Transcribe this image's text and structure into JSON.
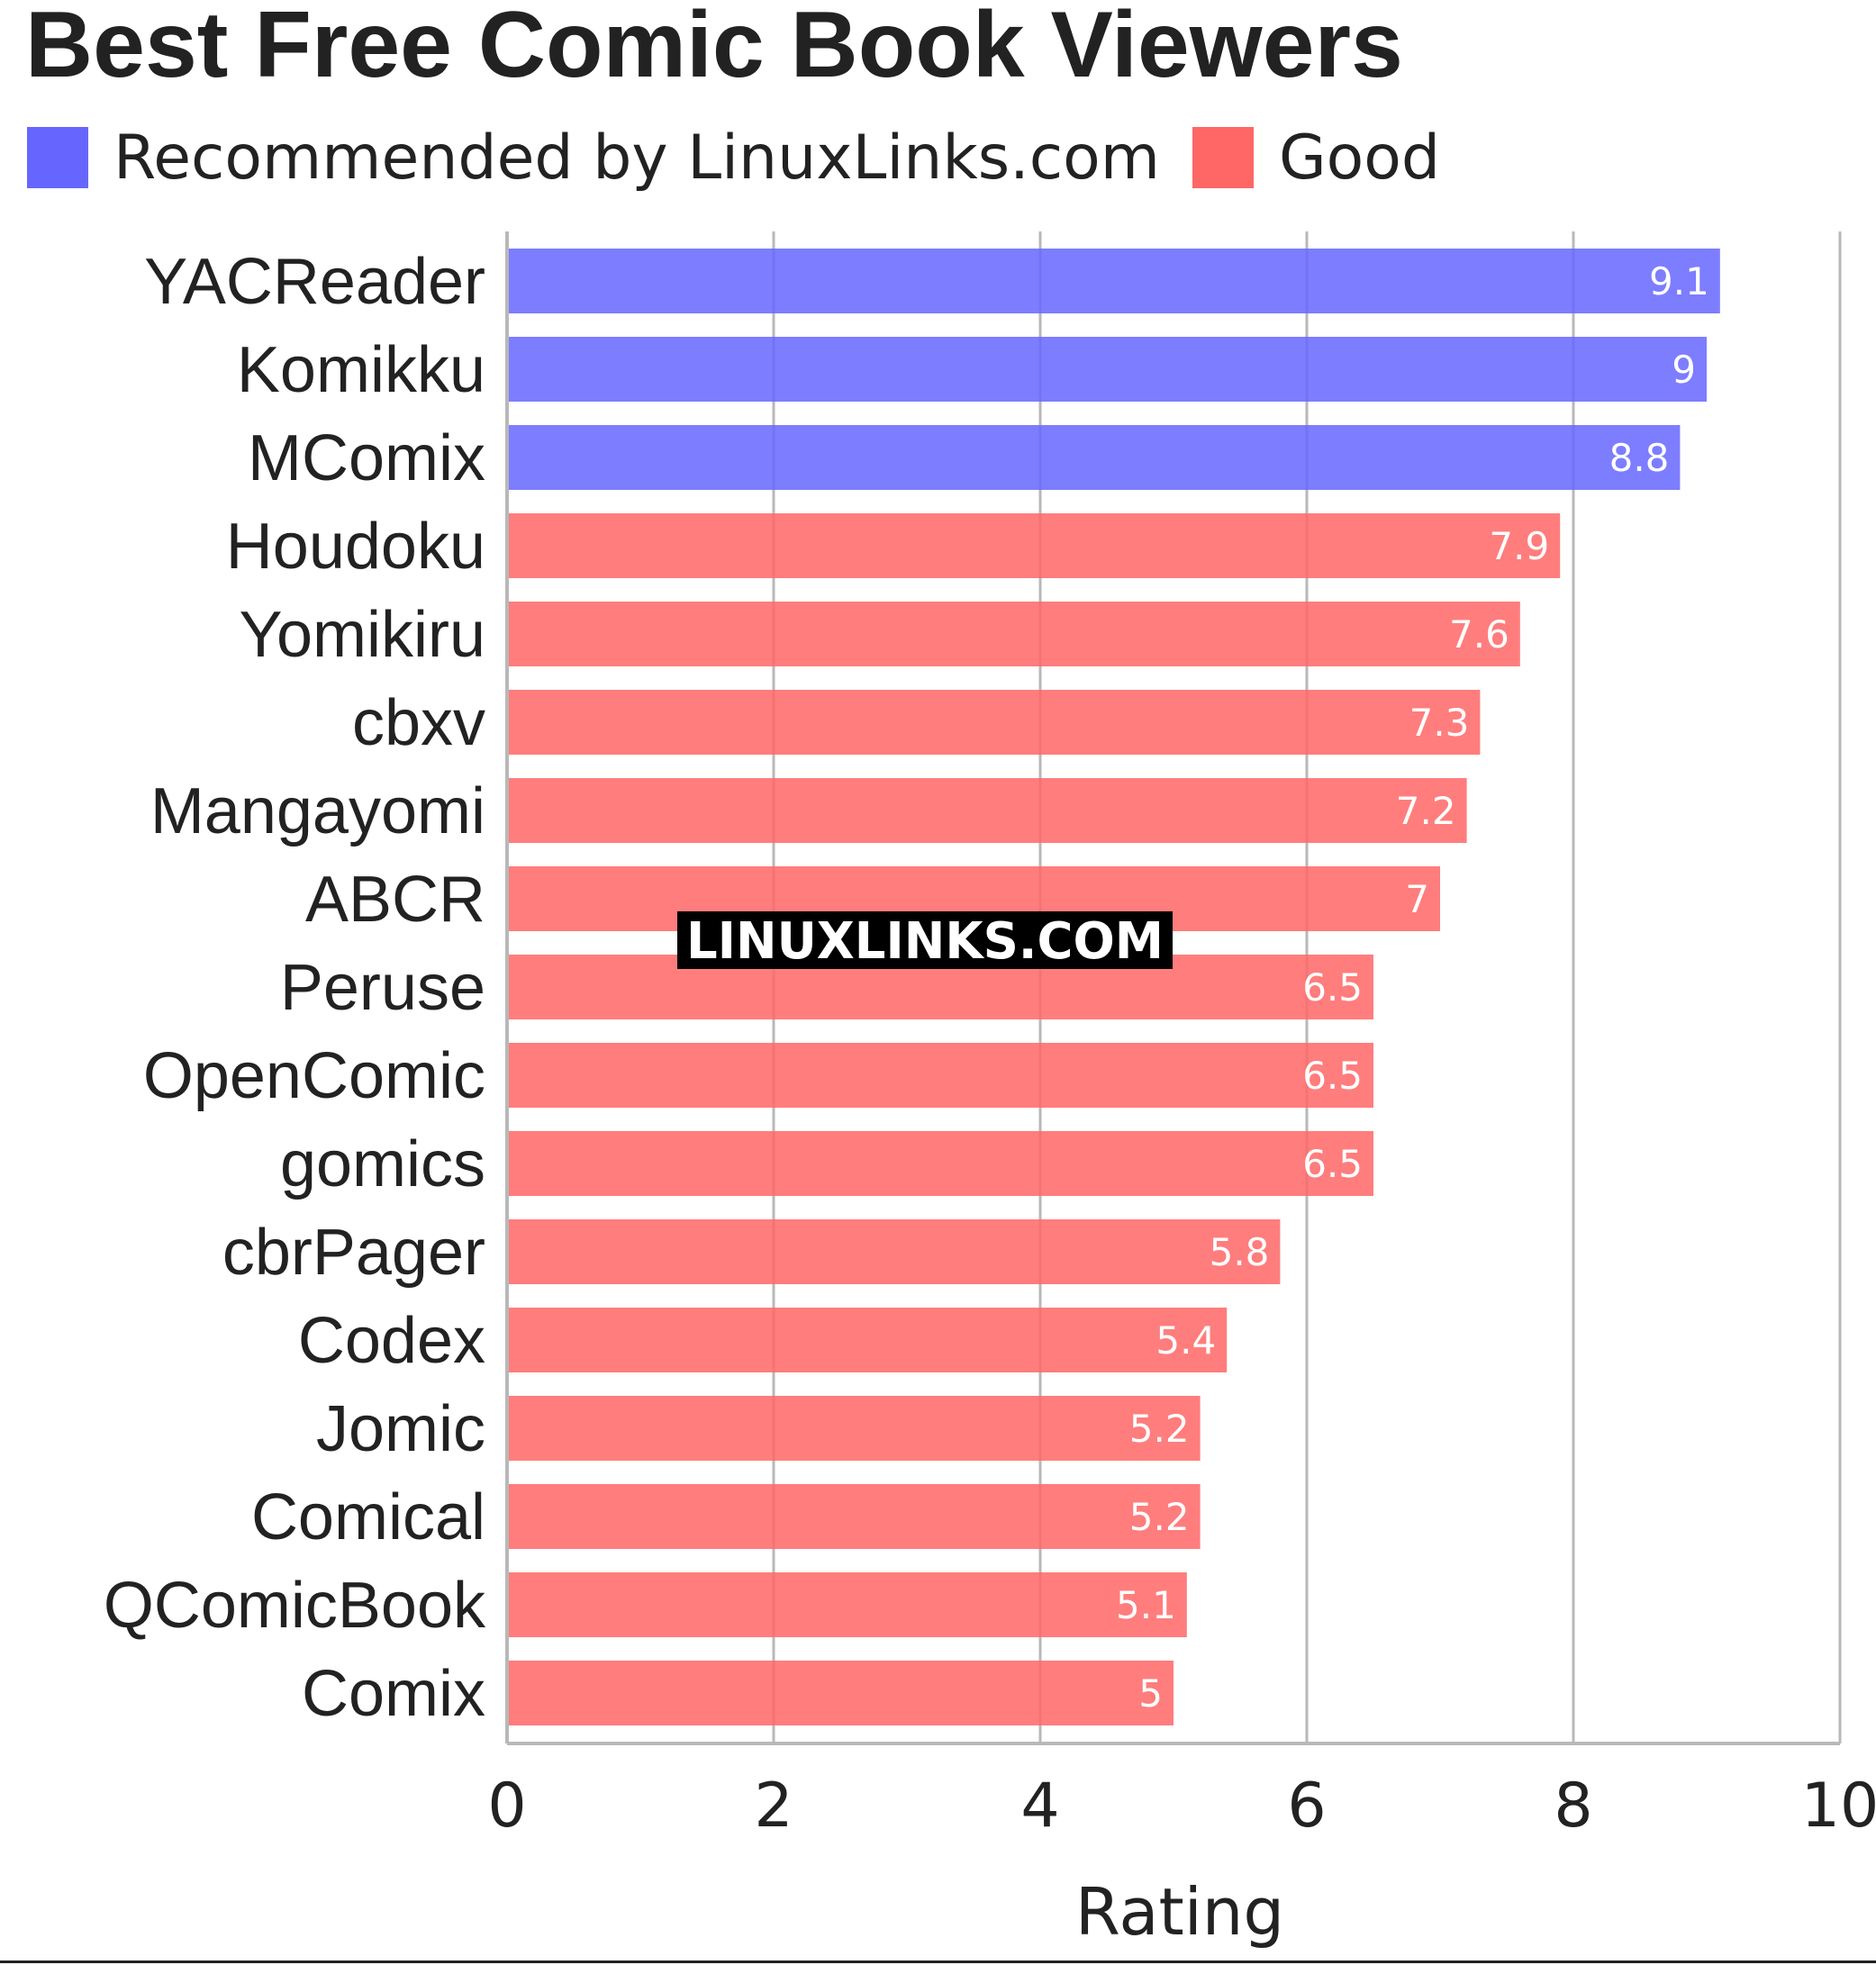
{
  "title": "Best Free Comic Book Viewers",
  "legend": [
    {
      "label": "Recommended by LinuxLinks.com",
      "color": "#6666ff"
    },
    {
      "label": "Good",
      "color": "#ff6666"
    }
  ],
  "watermark": "LINUXLINKS.COM",
  "chart_data": {
    "type": "bar",
    "orientation": "horizontal",
    "title": "Best Free Comic Book Viewers",
    "xlabel": "Rating",
    "ylabel": "",
    "xlim": [
      0,
      10
    ],
    "xticks": [
      "0",
      "2",
      "4",
      "6",
      "8",
      "10"
    ],
    "grid": true,
    "legend_position": "top",
    "categories": [
      "YACReader",
      "Komikku",
      "MComix",
      "Houdoku",
      "Yomikiru",
      "cbxv",
      "Mangayomi",
      "ABCR",
      "Peruse",
      "OpenComic",
      "gomics",
      "cbrPager",
      "Codex",
      "Jomic",
      "Comical",
      "QComicBook",
      "Comix"
    ],
    "values": [
      9.1,
      9,
      8.8,
      7.9,
      7.6,
      7.3,
      7.2,
      7,
      6.5,
      6.5,
      6.5,
      5.8,
      5.4,
      5.2,
      5.2,
      5.1,
      5
    ],
    "value_labels": [
      "9.1",
      "9",
      "8.8",
      "7.9",
      "7.6",
      "7.3",
      "7.2",
      "7",
      "6.5",
      "6.5",
      "6.5",
      "5.8",
      "5.4",
      "5.2",
      "5.2",
      "5.1",
      "5"
    ],
    "groups": [
      "Recommended by LinuxLinks.com",
      "Recommended by LinuxLinks.com",
      "Recommended by LinuxLinks.com",
      "Good",
      "Good",
      "Good",
      "Good",
      "Good",
      "Good",
      "Good",
      "Good",
      "Good",
      "Good",
      "Good",
      "Good",
      "Good",
      "Good"
    ],
    "colors": {
      "Recommended by LinuxLinks.com": "#6666ff",
      "Good": "#ff6666"
    }
  }
}
